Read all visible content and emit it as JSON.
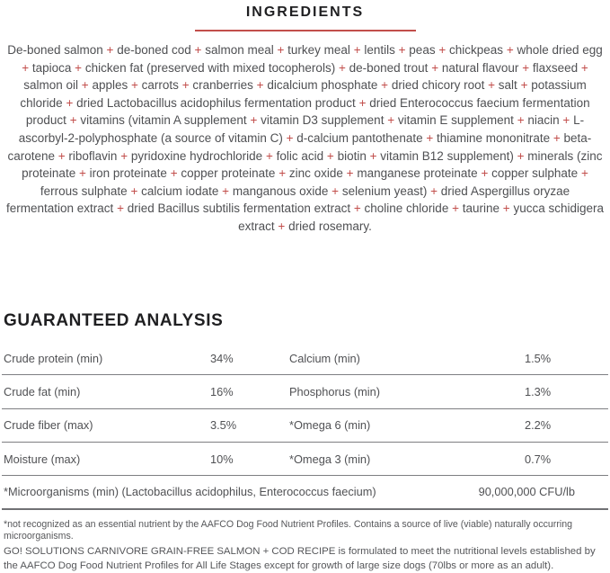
{
  "colors": {
    "accent_red": "#c24e4b",
    "heading_black": "#1f1f21",
    "body_gray": "#4f5053",
    "line_gray": "#7e7f82"
  },
  "ingredients": {
    "title": "INGREDIENTS",
    "text": "De-boned salmon + de-boned cod + salmon meal + turkey meal + lentils + peas + chickpeas + whole dried egg + tapioca + chicken fat (preserved with mixed tocopherols) + de-boned trout + natural flavour + flaxseed + salmon oil + apples + carrots + cranberries + dicalcium phosphate + dried chicory root + salt + potassium chloride + dried Lactobacillus acidophilus fermentation product + dried Enterococcus faecium fermentation product + vitamins (vitamin A supplement + vitamin D3 supplement + vitamin E supplement + niacin + L-ascorbyl-2-polyphosphate (a source of vitamin C) + d-calcium pantothenate + thiamine mononitrate + beta-carotene + riboflavin + pyridoxine hydrochloride + folic acid + biotin + vitamin B12 supplement) + minerals (zinc proteinate + iron proteinate + copper proteinate + zinc oxide + manganese proteinate + copper sulphate + ferrous sulphate + calcium iodate + manganous oxide + selenium yeast) + dried Aspergillus oryzae fermentation extract + dried Bacillus subtilis fermentation extract + choline chloride + taurine + yucca schidigera extract + dried rosemary."
  },
  "guaranteed_analysis": {
    "title": "GUARANTEED ANALYSIS",
    "rows": [
      {
        "label_left": "Crude protein (min)",
        "value_left": "34%",
        "label_right": "Calcium (min)",
        "value_right": "1.5%"
      },
      {
        "label_left": "Crude fat (min)",
        "value_left": "16%",
        "label_right": "Phosphorus (min)",
        "value_right": "1.3%"
      },
      {
        "label_left": "Crude fiber (max)",
        "value_left": "3.5%",
        "label_right": "*Omega 6 (min)",
        "value_right": "2.2%"
      },
      {
        "label_left": "Moisture (max)",
        "value_left": "10%",
        "label_right": "*Omega 3 (min)",
        "value_right": "0.7%"
      }
    ],
    "microorganisms_row": {
      "label": "*Microorganisms (min) (Lactobacillus acidophilus, Enterococcus faecium)",
      "value": "90,000,000 CFU/lb"
    },
    "footnote": "*not recognized as an essential nutrient by the AAFCO Dog Food Nutrient Profiles. Contains a source of live (viable) naturally occurring microorganisms.",
    "formulation_note": "GO! SOLUTIONS CARNIVORE GRAIN-FREE SALMON + COD RECIPE  is formulated to meet the nutritional levels established by the AAFCO Dog Food Nutrient Profiles for All Life Stages except for growth of large size dogs (70lbs or more as an adult)."
  }
}
